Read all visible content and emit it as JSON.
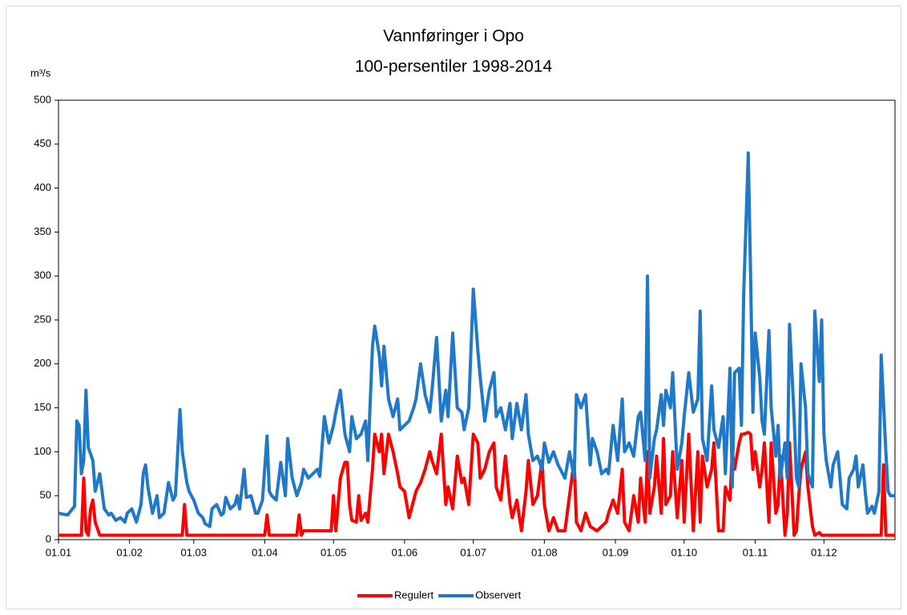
{
  "chart_data": {
    "type": "line",
    "title": "Vannføringer i Opo",
    "subtitle": "100-persentiler 1998-2014",
    "y_label": "m³/s",
    "xlim": [
      1,
      366
    ],
    "xticks": [
      {
        "value": 1,
        "label": "01.01"
      },
      {
        "value": 32,
        "label": "01.02"
      },
      {
        "value": 60,
        "label": "01.03"
      },
      {
        "value": 91,
        "label": "01.04"
      },
      {
        "value": 121,
        "label": "01.05"
      },
      {
        "value": 152,
        "label": "01.06"
      },
      {
        "value": 182,
        "label": "01.07"
      },
      {
        "value": 213,
        "label": "01.08"
      },
      {
        "value": 244,
        "label": "01.09"
      },
      {
        "value": 274,
        "label": "01.10"
      },
      {
        "value": 305,
        "label": "01.11"
      },
      {
        "value": 335,
        "label": "01.12"
      }
    ],
    "ylim": [
      0,
      500
    ],
    "yticks": [
      0,
      50,
      100,
      150,
      200,
      250,
      300,
      350,
      400,
      450,
      500
    ],
    "grid": false,
    "legend": "bottom",
    "series": [
      {
        "name": "Regulert",
        "color": "#ff0000",
        "x": [
          1,
          11,
          12,
          13,
          14,
          15,
          16,
          17,
          19,
          55,
          56,
          57,
          91,
          92,
          93,
          105,
          106,
          107,
          108,
          120,
          121,
          122,
          124,
          126,
          127,
          128,
          129,
          131,
          132,
          133,
          135,
          136,
          138,
          139,
          141,
          142,
          143,
          145,
          147,
          149,
          150,
          152,
          154,
          156,
          157,
          159,
          161,
          163,
          164,
          166,
          168,
          170,
          171,
          173,
          175,
          177,
          178,
          180,
          182,
          184,
          185,
          187,
          189,
          191,
          192,
          194,
          196,
          198,
          199,
          201,
          203,
          205,
          206,
          208,
          210,
          212,
          213,
          215,
          217,
          219,
          222,
          224,
          226,
          227,
          229,
          231,
          233,
          236,
          238,
          240,
          241,
          243,
          245,
          247,
          248,
          250,
          252,
          254,
          255,
          257,
          258,
          259,
          261,
          262,
          264,
          265,
          266,
          268,
          269,
          271,
          273,
          274,
          276,
          278,
          280,
          281,
          282,
          284,
          286,
          287,
          289,
          291,
          292,
          294,
          295,
          296,
          298,
          299,
          300,
          302,
          303,
          304,
          305,
          307,
          308,
          309,
          311,
          312,
          314,
          315,
          316,
          318,
          319,
          320,
          322,
          323,
          324,
          325,
          327,
          328,
          330,
          331,
          333,
          334,
          335,
          360,
          361,
          362,
          366
        ],
        "values": [
          5,
          5,
          70,
          10,
          5,
          35,
          45,
          20,
          5,
          5,
          40,
          5,
          5,
          28,
          5,
          5,
          28,
          5,
          10,
          10,
          50,
          10,
          70,
          88,
          88,
          40,
          22,
          20,
          50,
          22,
          30,
          20,
          80,
          120,
          100,
          120,
          75,
          120,
          100,
          75,
          60,
          55,
          25,
          45,
          55,
          65,
          80,
          100,
          90,
          75,
          120,
          40,
          60,
          35,
          95,
          65,
          70,
          40,
          120,
          110,
          70,
          80,
          100,
          110,
          60,
          45,
          95,
          40,
          25,
          45,
          10,
          55,
          90,
          40,
          50,
          90,
          40,
          10,
          25,
          10,
          10,
          50,
          90,
          20,
          10,
          30,
          15,
          10,
          15,
          20,
          30,
          45,
          30,
          80,
          20,
          10,
          50,
          20,
          70,
          20,
          100,
          30,
          60,
          95,
          30,
          115,
          40,
          50,
          100,
          25,
          90,
          20,
          120,
          10,
          100,
          20,
          95,
          60,
          80,
          110,
          10,
          10,
          60,
          45,
          100,
          80,
          110,
          120,
          120,
          122,
          120,
          80,
          100,
          60,
          80,
          110,
          20,
          110,
          30,
          40,
          95,
          5,
          30,
          110,
          5,
          10,
          50,
          80,
          100,
          60,
          15,
          5,
          8,
          5,
          5,
          5,
          85,
          5,
          5
        ]
      },
      {
        "name": "Observert",
        "color": "#1f78c8",
        "x": [
          1,
          5,
          8,
          9,
          10,
          11,
          12,
          13,
          14,
          16,
          17,
          19,
          21,
          23,
          24,
          26,
          28,
          30,
          31,
          33,
          35,
          37,
          38,
          39,
          40,
          42,
          44,
          45,
          47,
          49,
          51,
          52,
          54,
          55,
          57,
          58,
          60,
          62,
          64,
          65,
          67,
          68,
          70,
          72,
          73,
          74,
          76,
          78,
          79,
          80,
          82,
          83,
          85,
          87,
          88,
          90,
          92,
          93,
          94,
          96,
          98,
          100,
          101,
          103,
          105,
          107,
          108,
          110,
          112,
          114,
          115,
          117,
          119,
          121,
          122,
          124,
          126,
          128,
          129,
          131,
          133,
          135,
          136,
          138,
          139,
          141,
          142,
          143,
          145,
          147,
          149,
          150,
          152,
          154,
          156,
          157,
          159,
          161,
          163,
          164,
          166,
          168,
          170,
          171,
          173,
          175,
          177,
          178,
          180,
          182,
          184,
          185,
          187,
          189,
          191,
          192,
          194,
          196,
          198,
          199,
          201,
          203,
          205,
          206,
          208,
          210,
          212,
          213,
          215,
          217,
          219,
          220,
          222,
          224,
          226,
          227,
          229,
          231,
          233,
          234,
          236,
          238,
          240,
          241,
          243,
          245,
          247,
          248,
          250,
          252,
          254,
          255,
          257,
          258,
          259,
          261,
          262,
          264,
          265,
          266,
          268,
          269,
          271,
          273,
          274,
          276,
          278,
          280,
          281,
          282,
          284,
          286,
          287,
          289,
          291,
          292,
          294,
          295,
          296,
          298,
          299,
          300,
          302,
          303,
          304,
          305,
          307,
          308,
          309,
          311,
          312,
          314,
          315,
          316,
          318,
          319,
          320,
          322,
          323,
          324,
          325,
          327,
          328,
          330,
          331,
          333,
          334,
          335,
          336,
          338,
          339,
          341,
          342,
          343,
          345,
          346,
          348,
          349,
          350,
          352,
          353,
          354,
          356,
          357,
          359,
          360,
          362,
          363,
          364,
          366
        ],
        "values": [
          30,
          28,
          38,
          135,
          130,
          75,
          90,
          170,
          105,
          90,
          55,
          75,
          35,
          28,
          30,
          22,
          25,
          20,
          30,
          35,
          20,
          40,
          75,
          85,
          60,
          30,
          50,
          25,
          30,
          65,
          45,
          50,
          148,
          100,
          65,
          55,
          45,
          30,
          25,
          18,
          15,
          35,
          40,
          28,
          30,
          48,
          35,
          40,
          50,
          35,
          80,
          48,
          50,
          30,
          30,
          45,
          118,
          55,
          50,
          45,
          88,
          50,
          115,
          70,
          50,
          65,
          80,
          70,
          75,
          80,
          72,
          140,
          110,
          130,
          145,
          170,
          120,
          100,
          140,
          115,
          120,
          135,
          90,
          220,
          243,
          210,
          175,
          220,
          160,
          140,
          160,
          125,
          130,
          135,
          150,
          160,
          200,
          165,
          145,
          170,
          230,
          135,
          170,
          140,
          235,
          150,
          145,
          125,
          150,
          285,
          215,
          185,
          135,
          170,
          190,
          140,
          150,
          125,
          155,
          115,
          155,
          125,
          165,
          120,
          90,
          95,
          80,
          110,
          88,
          100,
          85,
          80,
          70,
          100,
          70,
          165,
          150,
          165,
          85,
          115,
          100,
          75,
          80,
          75,
          130,
          90,
          160,
          100,
          110,
          95,
          140,
          145,
          90,
          300,
          70,
          115,
          125,
          165,
          130,
          170,
          150,
          190,
          80,
          110,
          140,
          190,
          145,
          160,
          260,
          115,
          90,
          175,
          125,
          105,
          140,
          75,
          195,
          60,
          190,
          195,
          130,
          280,
          440,
          300,
          145,
          235,
          185,
          135,
          120,
          238,
          150,
          95,
          130,
          70,
          110,
          70,
          245,
          140,
          70,
          60,
          200,
          150,
          75,
          60,
          260,
          180,
          250,
          120,
          90,
          60,
          85,
          100,
          70,
          40,
          35,
          70,
          80,
          95,
          60,
          85,
          55,
          30,
          38,
          30,
          55,
          210,
          100,
          55,
          50,
          50
        ]
      }
    ]
  }
}
